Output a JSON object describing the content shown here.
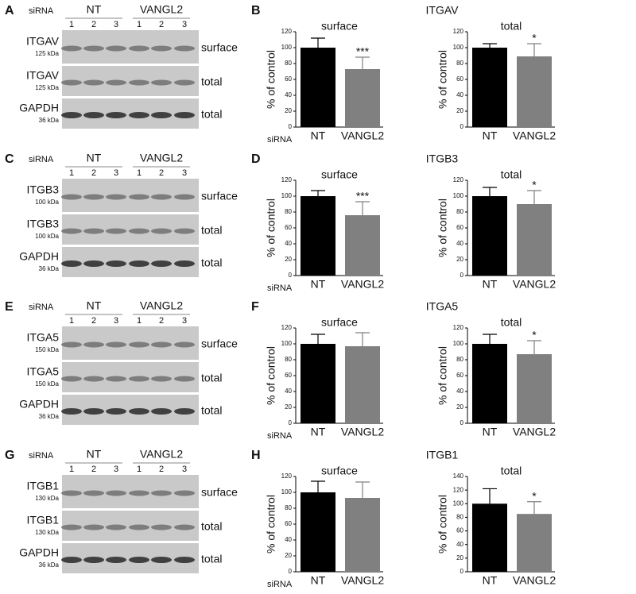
{
  "figure": {
    "rows": [
      {
        "blot_letter": "A",
        "sirna_label": "siRNA",
        "groups": [
          "NT",
          "VANGL2"
        ],
        "lanes": [
          "1",
          "2",
          "3",
          "1",
          "2",
          "3"
        ],
        "bands": [
          {
            "protein": "ITGAV",
            "size": "125 kDa",
            "fraction": "surface"
          },
          {
            "protein": "ITGAV",
            "size": "125 kDa",
            "fraction": "total"
          },
          {
            "protein": "GAPDH",
            "size": "36 kDa",
            "fraction": "total"
          }
        ],
        "chart_letter": "B",
        "chart_title": "ITGAV"
      },
      {
        "blot_letter": "C",
        "sirna_label": "siRNA",
        "groups": [
          "NT",
          "VANGL2"
        ],
        "lanes": [
          "1",
          "2",
          "3",
          "1",
          "2",
          "3"
        ],
        "bands": [
          {
            "protein": "ITGB3",
            "size": "100 kDa",
            "fraction": "surface"
          },
          {
            "protein": "ITGB3",
            "size": "100 kDa",
            "fraction": "total"
          },
          {
            "protein": "GAPDH",
            "size": "36 kDa",
            "fraction": "total"
          }
        ],
        "chart_letter": "D",
        "chart_title": "ITGB3"
      },
      {
        "blot_letter": "E",
        "sirna_label": "siRNA",
        "groups": [
          "NT",
          "VANGL2"
        ],
        "lanes": [
          "1",
          "2",
          "3",
          "1",
          "2",
          "3"
        ],
        "bands": [
          {
            "protein": "ITGA5",
            "size": "150 kDa",
            "fraction": "surface"
          },
          {
            "protein": "ITGA5",
            "size": "150 kDa",
            "fraction": "total"
          },
          {
            "protein": "GAPDH",
            "size": "36 kDa",
            "fraction": "total"
          }
        ],
        "chart_letter": "F",
        "chart_title": "ITGA5"
      },
      {
        "blot_letter": "G",
        "sirna_label": "siRNA",
        "groups": [
          "NT",
          "VANGL2"
        ],
        "lanes": [
          "1",
          "2",
          "3",
          "1",
          "2",
          "3"
        ],
        "bands": [
          {
            "protein": "ITGB1",
            "size": "130 kDa",
            "fraction": "surface"
          },
          {
            "protein": "ITGB1",
            "size": "130 kDa",
            "fraction": "total"
          },
          {
            "protein": "GAPDH",
            "size": "36 kDa",
            "fraction": "total"
          }
        ],
        "chart_letter": "H",
        "chart_title": "ITGB1"
      }
    ]
  },
  "chart_data": [
    {
      "type": "bar",
      "title": "surface",
      "ylabel": "% of control",
      "x_prefix": "siRNA",
      "categories": [
        "NT",
        "VANGL2"
      ],
      "values": [
        100,
        73
      ],
      "errors": [
        12,
        15
      ],
      "significance": [
        null,
        "***"
      ],
      "colors": [
        "#000000",
        "#808080"
      ],
      "ylim": [
        0,
        120
      ],
      "yticks": [
        0,
        20,
        40,
        60,
        80,
        100,
        120
      ]
    },
    {
      "type": "bar",
      "title": "total",
      "ylabel": "% of control",
      "categories": [
        "NT",
        "VANGL2"
      ],
      "values": [
        100,
        89
      ],
      "errors": [
        5,
        16
      ],
      "significance": [
        null,
        "*"
      ],
      "colors": [
        "#000000",
        "#808080"
      ],
      "ylim": [
        0,
        120
      ],
      "yticks": [
        0,
        20,
        40,
        60,
        80,
        100,
        120
      ]
    },
    {
      "type": "bar",
      "title": "surface",
      "ylabel": "% of control",
      "x_prefix": "siRNA",
      "categories": [
        "NT",
        "VANGL2"
      ],
      "values": [
        100,
        76
      ],
      "errors": [
        7,
        17
      ],
      "significance": [
        null,
        "***"
      ],
      "colors": [
        "#000000",
        "#808080"
      ],
      "ylim": [
        0,
        120
      ],
      "yticks": [
        0,
        20,
        40,
        60,
        80,
        100,
        120
      ]
    },
    {
      "type": "bar",
      "title": "total",
      "ylabel": "% of control",
      "categories": [
        "NT",
        "VANGL2"
      ],
      "values": [
        100,
        90
      ],
      "errors": [
        11,
        17
      ],
      "significance": [
        null,
        "*"
      ],
      "colors": [
        "#000000",
        "#808080"
      ],
      "ylim": [
        0,
        120
      ],
      "yticks": [
        0,
        20,
        40,
        60,
        80,
        100,
        120
      ]
    },
    {
      "type": "bar",
      "title": "surface",
      "ylabel": "% of control",
      "x_prefix": "siRNA",
      "categories": [
        "NT",
        "VANGL2"
      ],
      "values": [
        100,
        97
      ],
      "errors": [
        12,
        17
      ],
      "significance": [
        null,
        null
      ],
      "colors": [
        "#000000",
        "#808080"
      ],
      "ylim": [
        0,
        120
      ],
      "yticks": [
        0,
        20,
        40,
        60,
        80,
        100,
        120
      ]
    },
    {
      "type": "bar",
      "title": "total",
      "ylabel": "% of control",
      "categories": [
        "NT",
        "VANGL2"
      ],
      "values": [
        100,
        87
      ],
      "errors": [
        12,
        17
      ],
      "significance": [
        null,
        "*"
      ],
      "colors": [
        "#000000",
        "#808080"
      ],
      "ylim": [
        0,
        120
      ],
      "yticks": [
        0,
        20,
        40,
        60,
        80,
        100,
        120
      ]
    },
    {
      "type": "bar",
      "title": "surface",
      "ylabel": "% of control",
      "x_prefix": "siRNA",
      "categories": [
        "NT",
        "VANGL2"
      ],
      "values": [
        100,
        93
      ],
      "errors": [
        14,
        20
      ],
      "significance": [
        null,
        null
      ],
      "colors": [
        "#000000",
        "#808080"
      ],
      "ylim": [
        0,
        120
      ],
      "yticks": [
        0,
        20,
        40,
        60,
        80,
        100,
        120
      ]
    },
    {
      "type": "bar",
      "title": "total",
      "ylabel": "% of control",
      "categories": [
        "NT",
        "VANGL2"
      ],
      "values": [
        100,
        85
      ],
      "errors": [
        22,
        18
      ],
      "significance": [
        null,
        "*"
      ],
      "colors": [
        "#000000",
        "#808080"
      ],
      "ylim": [
        0,
        140
      ],
      "yticks": [
        0,
        20,
        40,
        60,
        80,
        100,
        120,
        140
      ]
    }
  ]
}
